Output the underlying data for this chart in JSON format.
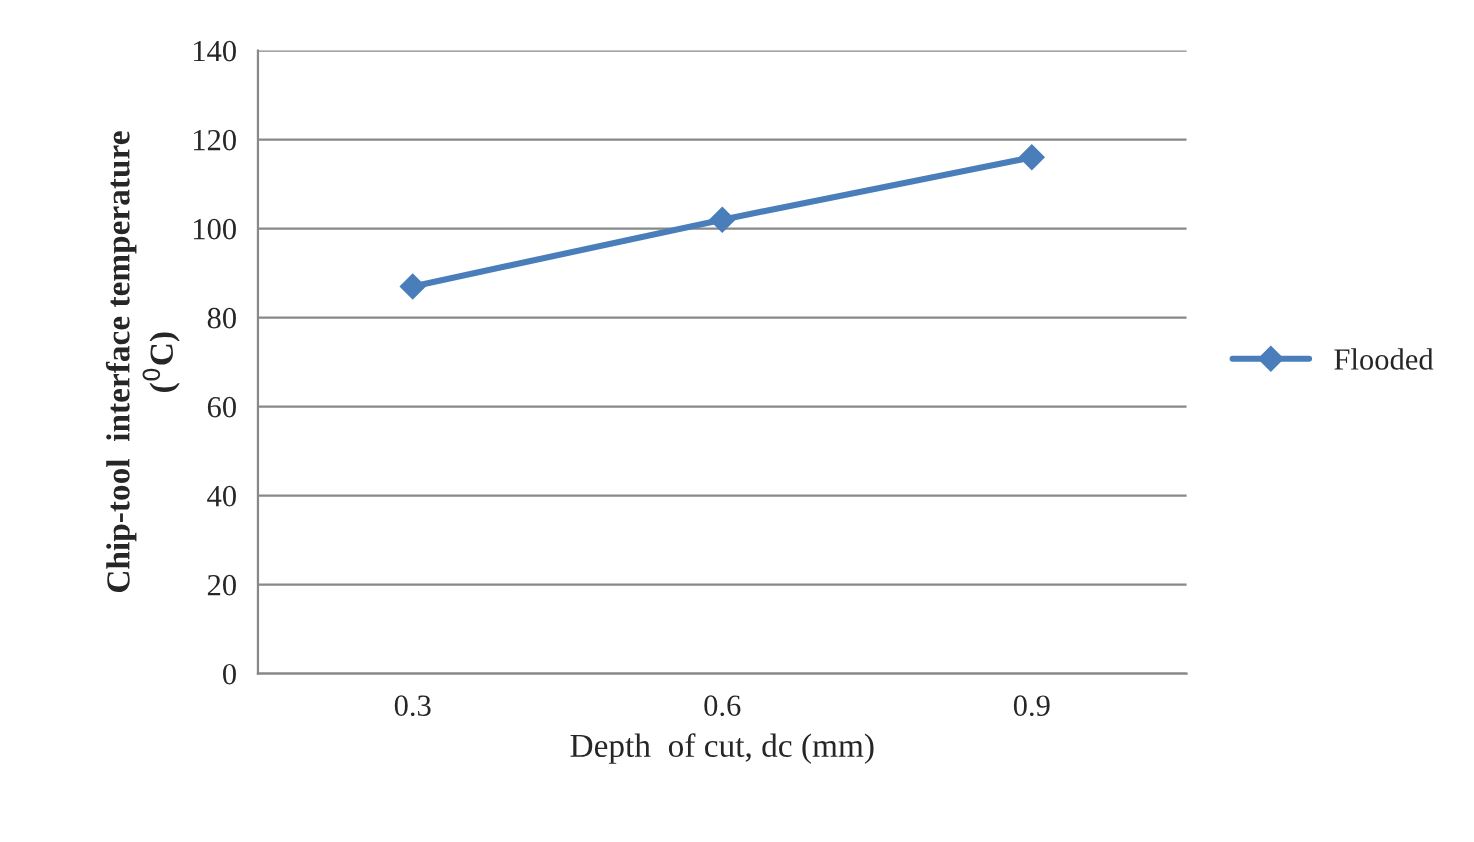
{
  "chart_data": {
    "type": "line",
    "xlabel": "Depth  of cut, dc (mm)",
    "ylabel": "Chip-tool  interface temperature\n($^{0}$C)",
    "categories": [
      "0.3",
      "0.6",
      "0.9"
    ],
    "series": [
      {
        "name": "Flooded",
        "color": "#4a7ebb",
        "values": [
          87,
          102,
          116
        ]
      }
    ],
    "ylim": [
      0,
      140
    ],
    "yticks": [
      0,
      20,
      40,
      60,
      80,
      100,
      120,
      140
    ],
    "grid": "y",
    "legend": "right",
    "marker": "diamond",
    "line_style": "solid"
  }
}
